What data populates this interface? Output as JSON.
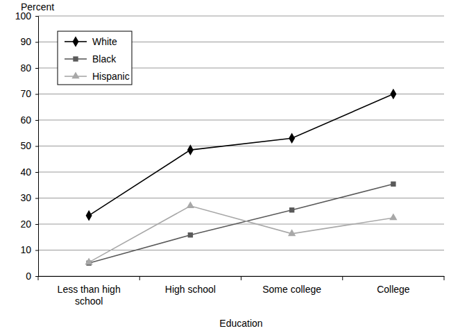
{
  "chart_data": {
    "type": "line",
    "y_label": "Percent",
    "x_label": "Education",
    "categories": [
      "Less than high school",
      "High school",
      "Some college",
      "College"
    ],
    "series": [
      {
        "name": "White",
        "color": "#000000",
        "marker": "diamond",
        "line_style": "solid",
        "values": [
          23.3,
          48.5,
          53,
          70
        ]
      },
      {
        "name": "Black",
        "color": "#5a5a5a",
        "marker": "square",
        "line_style": "solid",
        "values": [
          5,
          15.8,
          25.4,
          35.4
        ]
      },
      {
        "name": "Hispanic",
        "color": "#a8a8a8",
        "marker": "triangle",
        "line_style": "solid",
        "values": [
          5.3,
          27,
          16.3,
          22.4
        ]
      }
    ],
    "ylim": [
      0,
      100
    ],
    "yticks": [
      0,
      10,
      20,
      30,
      40,
      50,
      60,
      70,
      80,
      90,
      100
    ],
    "grid": true,
    "legend": "top-left"
  }
}
